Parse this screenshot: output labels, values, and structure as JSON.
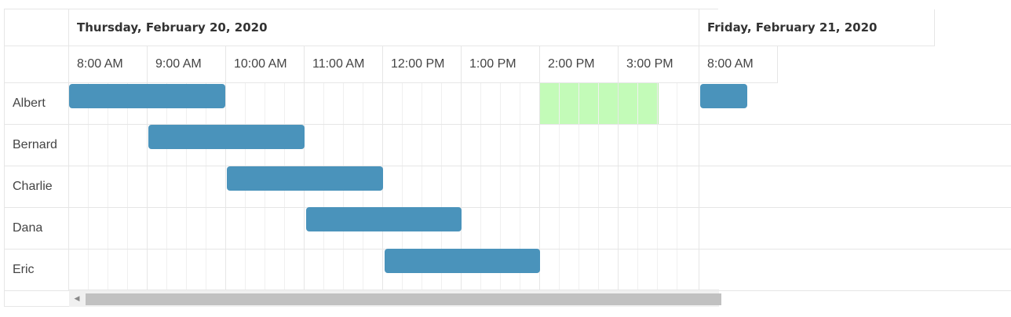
{
  "scheduler": {
    "dates": [
      "Thursday, February 20, 2020",
      "Friday, February 21, 2020"
    ],
    "time_slots": [
      "8:00 AM",
      "9:00 AM",
      "10:00 AM",
      "11:00 AM",
      "12:00 PM",
      "1:00 PM",
      "2:00 PM",
      "3:00 PM",
      "8:00 AM"
    ],
    "resources": [
      "Albert",
      "Bernard",
      "Charlie",
      "Dana",
      "Eric"
    ],
    "events": [
      {
        "resource": "Albert",
        "start": "8:00 AM",
        "end": "10:00 AM",
        "color": "#4a93bb"
      },
      {
        "resource": "Bernard",
        "start": "9:00 AM",
        "end": "11:00 AM",
        "color": "#4a93bb"
      },
      {
        "resource": "Charlie",
        "start": "10:00 AM",
        "end": "12:00 PM",
        "color": "#4a93bb"
      },
      {
        "resource": "Dana",
        "start": "11:00 AM",
        "end": "1:00 PM",
        "color": "#4a93bb"
      },
      {
        "resource": "Eric",
        "start": "12:00 PM",
        "end": "2:00 PM",
        "color": "#4a93bb"
      },
      {
        "resource": "Albert",
        "start": "Friday 8:00 AM",
        "end": "",
        "color": "#4a93bb"
      }
    ],
    "highlight": {
      "resource": "Albert",
      "start": "2:00 PM",
      "end": "3:30 PM",
      "color": "#c3fbb8"
    },
    "colors": {
      "border": "#e6e6e6",
      "event": "#4a93bb",
      "highlight": "#c3fbb8",
      "scrollbar_thumb": "#c1c1c1"
    },
    "scroll_left_icon": "triangle-left-icon"
  }
}
